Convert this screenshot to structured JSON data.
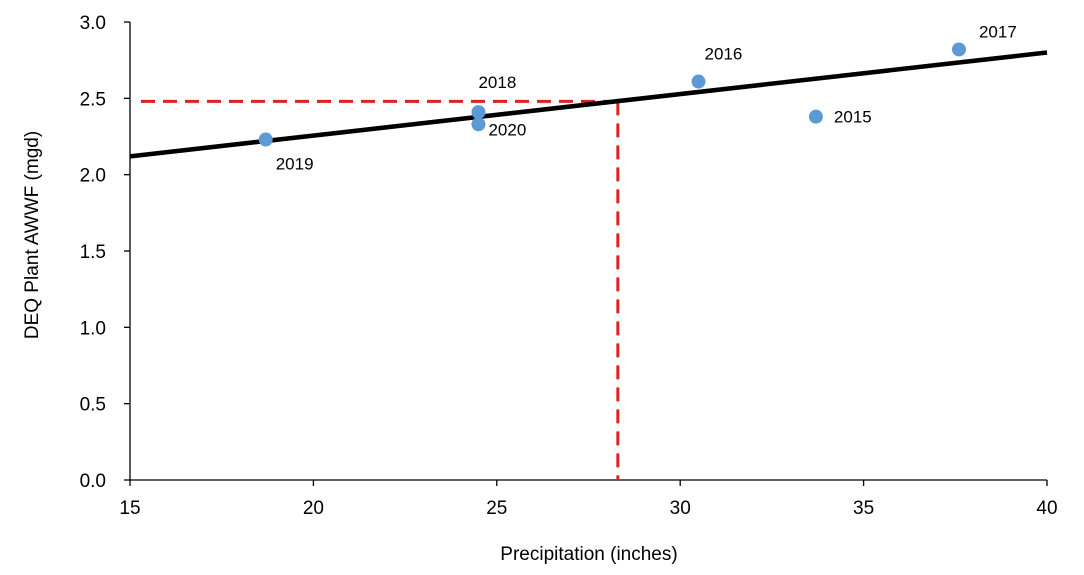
{
  "chart_data": {
    "type": "scatter",
    "title": "",
    "xlabel": "Precipitation (inches)",
    "ylabel": "DEQ Plant AWWF (mgd)",
    "xlim": [
      15,
      40
    ],
    "ylim": [
      0,
      3
    ],
    "x_ticks": [
      "15",
      "20",
      "25",
      "30",
      "35",
      "40"
    ],
    "y_ticks": [
      "0.0",
      "0.5",
      "1.0",
      "1.5",
      "2.0",
      "2.5",
      "3.0"
    ],
    "grid": false,
    "legend": "none",
    "series": [
      {
        "points": [
          {
            "label": "2015",
            "x": 33.7,
            "y": 2.38
          },
          {
            "label": "2016",
            "x": 30.5,
            "y": 2.61
          },
          {
            "label": "2017",
            "x": 37.6,
            "y": 2.82
          },
          {
            "label": "2018",
            "x": 24.5,
            "y": 2.41
          },
          {
            "label": "2019",
            "x": 18.7,
            "y": 2.23
          },
          {
            "label": "2020",
            "x": 24.5,
            "y": 2.33
          }
        ],
        "color": "#5b9bd5"
      }
    ],
    "trendline": {
      "x": [
        15,
        40
      ],
      "y": [
        2.12,
        2.8
      ],
      "color": "#000000"
    },
    "reference_lines": {
      "color": "#e02020",
      "style": "dashed",
      "x_value": 28.3,
      "y_value": 2.48,
      "horizontal_from_x": 15.3
    }
  }
}
